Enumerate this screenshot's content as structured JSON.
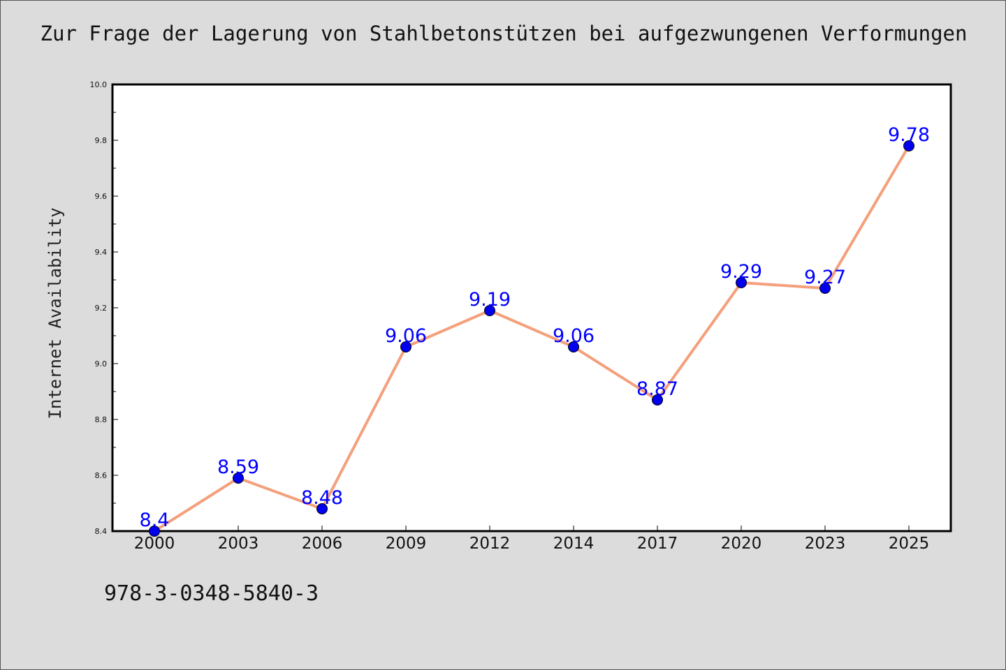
{
  "header": {
    "title": "Zur Frage der Lagerung von Stahlbetonstützen bei aufgezwungenen Verformungen"
  },
  "footer": {
    "text": "978-3-0348-5840-3"
  },
  "chart_data": {
    "type": "line",
    "title": "Zur Frage der Lagerung von Stahlbetonstützen bei aufgezwungenen Verformungen",
    "xlabel": "",
    "ylabel": "Internet Availability",
    "categories": [
      "2000",
      "2003",
      "2006",
      "2009",
      "2012",
      "2014",
      "2017",
      "2020",
      "2023",
      "2025"
    ],
    "series": [
      {
        "values": [
          8.4,
          8.59,
          8.48,
          9.06,
          9.19,
          9.06,
          8.87,
          9.29,
          9.27,
          9.78
        ],
        "labels": [
          "8.4",
          "8.59",
          "8.48",
          "9.06",
          "9.19",
          "9.06",
          "8.87",
          "9.29",
          "9.27",
          "9.78"
        ]
      }
    ],
    "ylim": [
      8.4,
      10.0
    ],
    "yticks": [
      "8.4",
      "8.6",
      "8.8",
      "9.0",
      "9.2",
      "9.4",
      "9.6",
      "9.8",
      "10.0"
    ],
    "grid": false,
    "legend": "none",
    "colors": {
      "line": "#f4a07c",
      "marker": "#0000ee",
      "label": "#0000ff",
      "background": "#dcdcdc",
      "plot_background": "#ffffff"
    }
  }
}
